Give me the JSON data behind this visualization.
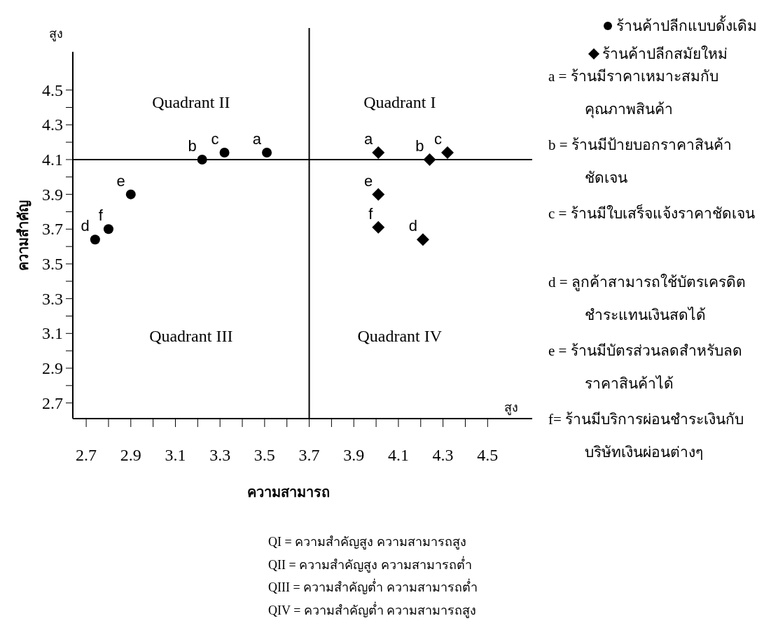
{
  "chart_data": {
    "type": "scatter",
    "xlabel": "ความสามารถ",
    "ylabel": "ความสำคัญ",
    "xlim": [
      2.64,
      4.7
    ],
    "ylim": [
      2.61,
      4.72
    ],
    "xticks": [
      2.7,
      {
        "value": 2.8,
        "label": null
      },
      2.9,
      {
        "value": 3.0,
        "label": null
      },
      3.1,
      {
        "value": 3.2,
        "label": null
      },
      3.3,
      {
        "value": 3.4,
        "label": null
      },
      3.5,
      {
        "value": 3.6,
        "label": null
      },
      3.7,
      {
        "value": 3.8,
        "label": null
      },
      3.9,
      {
        "value": 4.0,
        "label": null
      },
      4.1,
      {
        "value": 4.2,
        "label": null
      },
      4.3,
      {
        "value": 4.4,
        "label": null
      },
      4.5
    ],
    "yticks": [
      2.7,
      {
        "value": 2.8,
        "label": null
      },
      2.9,
      {
        "value": 3.0,
        "label": null
      },
      3.1,
      {
        "value": 3.2,
        "label": null
      },
      3.3,
      {
        "value": 3.4,
        "label": null
      },
      3.5,
      {
        "value": 3.6,
        "label": null
      },
      3.7,
      {
        "value": 3.8,
        "label": null
      },
      3.9,
      {
        "value": 4.0,
        "label": null
      },
      4.1,
      {
        "value": 4.2,
        "label": null
      },
      4.3,
      {
        "value": 4.4,
        "label": null
      },
      4.5
    ],
    "series": [
      {
        "name": "ร้านค้าปลีกแบบดั้งเดิม",
        "color": "#000000",
        "marker": "circle",
        "x": [
          3.51,
          3.22,
          3.32,
          2.74,
          2.9,
          2.8
        ],
        "values": [
          4.14,
          4.1,
          4.14,
          3.64,
          3.9,
          3.7
        ]
      },
      {
        "name": "ร้านค้าปลีกสมัยใหม่",
        "color": "#000000",
        "marker": "diamond",
        "x": [
          4.01,
          4.24,
          4.32,
          4.21,
          4.01,
          4.01
        ],
        "values": [
          4.14,
          4.1,
          4.14,
          3.64,
          3.9,
          3.71
        ]
      }
    ],
    "ref_lines": [
      {
        "axis": "x",
        "value": 3.7
      },
      {
        "axis": "y",
        "value": 4.1
      }
    ],
    "legend": "right",
    "grid": false,
    "annotations": [
      "สูง",
      "สูง",
      "Quadrant II",
      "Quadrant I",
      "Quadrant III",
      "Quadrant IV",
      "a = ร้านมีราคาเหมาะสมกับคุณภาพสินค้า",
      "b = ร้านมีป้ายบอกราคาสินค้าชัดเจน",
      "c = ร้านมีใบเสร็จแจ้งราคาชัดเจน",
      "d = ลูกค้าสามารถใช้บัตรเครดิตชำระแทนเงินสดได้",
      "e = ร้านมีบัตรส่วนลดสำหรับลดราคาสินค้าได้",
      "f= ร้านมีบริการผ่อนชำระเงินกับบริษัทเงินผ่อนต่างๆ",
      "QI = ความสำคัญสูง ความสามารถสูง",
      "QII = ความสำคัญสูง ความสามารถต่ำ",
      "QIII = ความสำคัญต่ำ ความสามารถต่ำ",
      "QIV = ความสำคัญต่ำ ความสามารถสูง",
      {
        "text": "a",
        "x": 3.51,
        "y": 4.14
      },
      {
        "text": "b",
        "x": 3.22,
        "y": 4.1
      },
      {
        "text": "c",
        "x": 3.32,
        "y": 4.14
      },
      {
        "text": "d",
        "x": 2.74,
        "y": 3.64
      },
      {
        "text": "e",
        "x": 2.9,
        "y": 3.9
      },
      {
        "text": "f",
        "x": 2.8,
        "y": 3.7
      },
      {
        "text": "a",
        "x": 4.01,
        "y": 4.14
      },
      {
        "text": "b",
        "x": 4.24,
        "y": 4.1
      },
      {
        "text": "c",
        "x": 4.32,
        "y": 4.14
      },
      {
        "text": "d",
        "x": 4.21,
        "y": 3.64
      },
      {
        "text": "e",
        "x": 4.01,
        "y": 3.9
      },
      {
        "text": "f",
        "x": 4.01,
        "y": 3.71
      }
    ]
  }
}
